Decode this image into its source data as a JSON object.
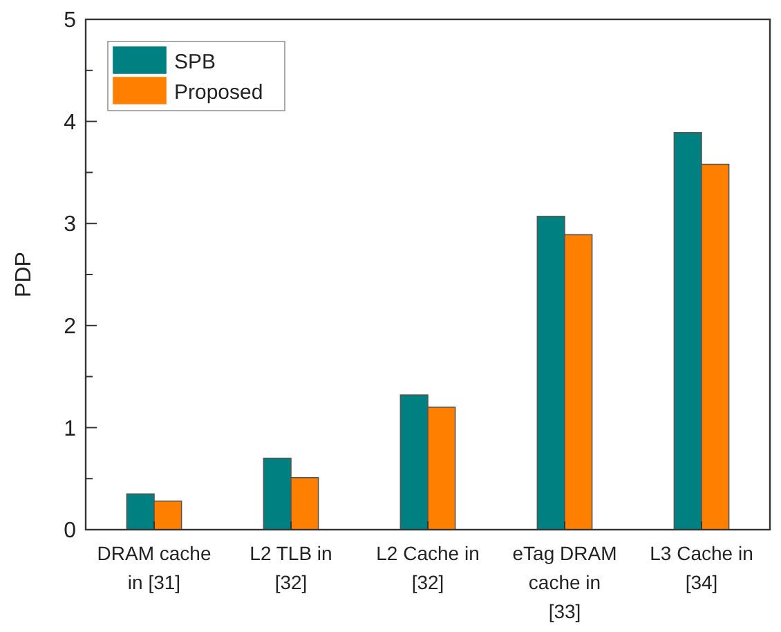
{
  "chart_data": {
    "type": "bar",
    "ylabel": "PDP",
    "categories": [
      "DRAM cache in [31]",
      "L2 TLB in [32]",
      "L2 Cache in [32]",
      "eTag DRAM cache in [33]",
      "L3 Cache in [34]"
    ],
    "series": [
      {
        "name": "SPB",
        "color": "#008080",
        "values": [
          0.35,
          0.7,
          1.32,
          3.07,
          3.89
        ]
      },
      {
        "name": "Proposed",
        "color": "#ff8000",
        "values": [
          0.28,
          0.51,
          1.2,
          2.89,
          3.58
        ]
      }
    ],
    "ylim": [
      0,
      5
    ],
    "yticks": [
      0,
      {
        "value": 0.5,
        "label": null
      },
      1,
      {
        "value": 1.5,
        "label": null
      },
      2,
      {
        "value": 2.5,
        "label": null
      },
      3,
      {
        "value": 3.5,
        "label": null
      },
      4,
      {
        "value": 4.5,
        "label": null
      },
      5
    ],
    "grid": false,
    "legend": "top left"
  }
}
